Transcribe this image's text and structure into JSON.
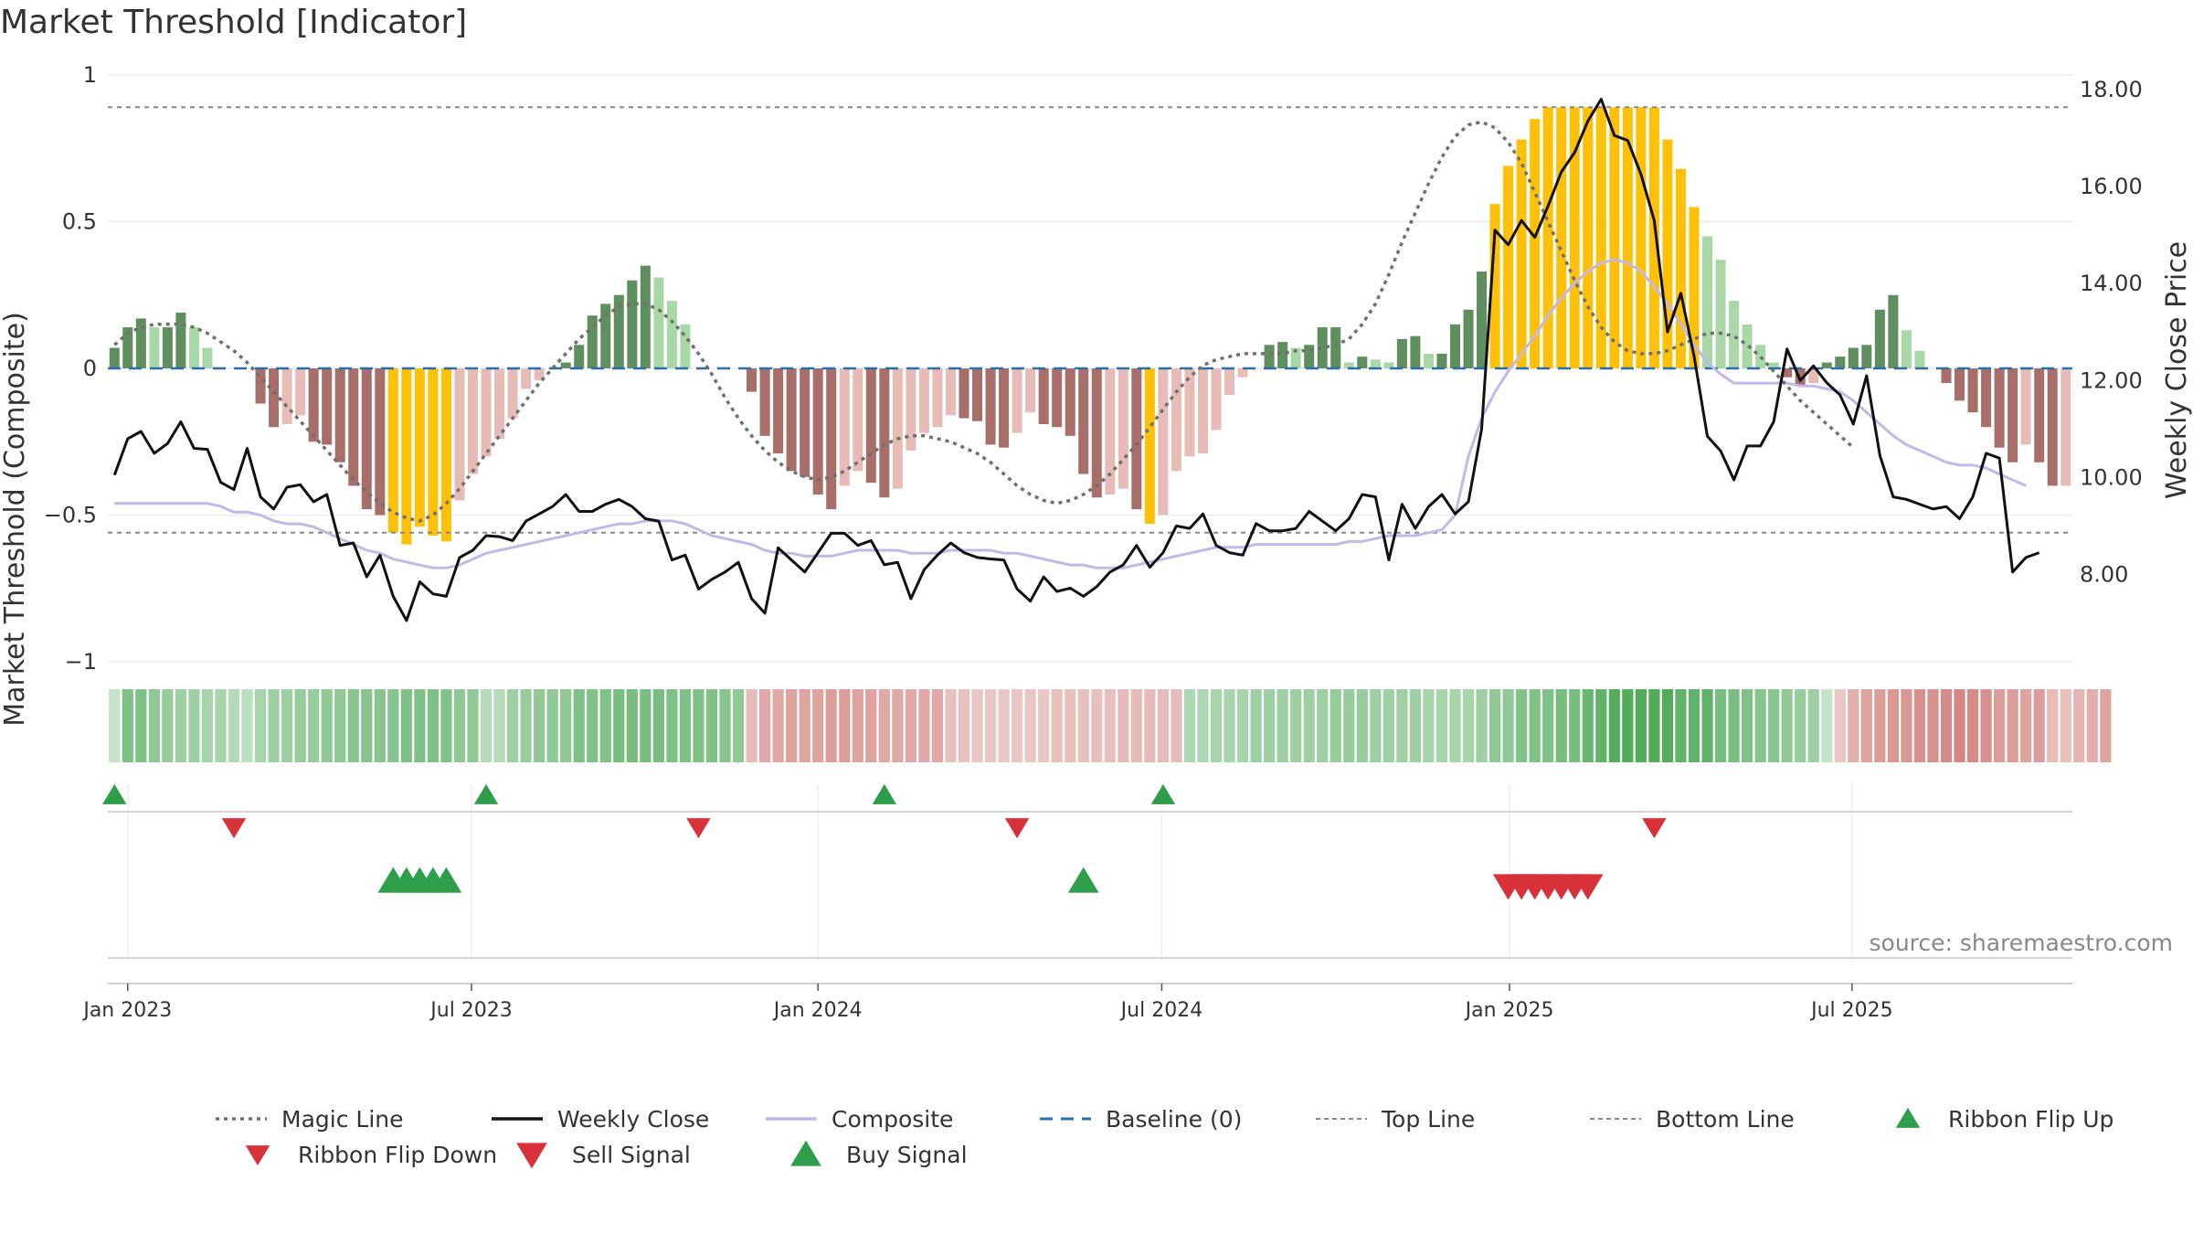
{
  "title": "Market Threshold [Indicator]",
  "source": "source: sharemaestro.com",
  "colors": {
    "dark_green": "#5f8f5e",
    "light_green": "#a9d8a7",
    "dark_red": "#a86e6a",
    "light_red": "#e8bcb6",
    "gold": "#ffc107",
    "close_line": "#111111",
    "composite_line": "#c3b8e8",
    "magic_line": "#707070",
    "baseline": "#2a6fa8",
    "ref_line": "#888888",
    "signal_up": "#2e9e4a",
    "signal_down": "#d9313a"
  },
  "legend": [
    {
      "label": "Magic Line",
      "icon": "dotted-line-icon"
    },
    {
      "label": "Weekly Close",
      "icon": "solid-line-icon"
    },
    {
      "label": "Composite",
      "icon": "lavender-line-icon"
    },
    {
      "label": "Baseline (0)",
      "icon": "dashed-line-icon"
    },
    {
      "label": "Top Line",
      "icon": "dashed-gray-line-icon"
    },
    {
      "label": "Bottom Line",
      "icon": "dashed-gray-line-icon"
    },
    {
      "label": "Ribbon Flip Up",
      "icon": "triangle-up-icon"
    },
    {
      "label": "Ribbon Flip Down",
      "icon": "triangle-down-icon"
    },
    {
      "label": "Sell Signal",
      "icon": "triangle-down-icon"
    },
    {
      "label": "Buy Signal",
      "icon": "triangle-up-icon"
    }
  ],
  "chart_data": {
    "type": "bar",
    "title": "Market Threshold [Indicator]",
    "ylabel": "Market Threshold (Composite)",
    "y2label": "Weekly Close Price",
    "ylim": [
      -1,
      1
    ],
    "y2lim": [
      6.2,
      18.3
    ],
    "yticks": [
      "1",
      "0.5",
      "0",
      "−0.5",
      "−1"
    ],
    "ytick_values": [
      1,
      0.5,
      0,
      -0.5,
      -1
    ],
    "y2ticks": [
      "18.00",
      "16.00",
      "14.00",
      "12.00",
      "10.00",
      "8.00"
    ],
    "y2tick_values": [
      18,
      16,
      14,
      12,
      10,
      8
    ],
    "x_start_date": "2022-12-26",
    "x_ticks": [
      {
        "label": "Jan 2023",
        "week": 1.0
      },
      {
        "label": "Jul 2023",
        "week": 26.9
      },
      {
        "label": "Jan 2024",
        "week": 53.0
      },
      {
        "label": "Jul 2024",
        "week": 78.9
      },
      {
        "label": "Jan 2025",
        "week": 105.1
      },
      {
        "label": "Jul 2025",
        "week": 130.9
      }
    ],
    "top_line": 0.89,
    "bottom_line": -0.56,
    "composite_bars": [
      0.07,
      0.14,
      0.17,
      0.14,
      0.14,
      0.19,
      0.14,
      0.07,
      0,
      0,
      0,
      -0.12,
      -0.2,
      -0.19,
      -0.16,
      -0.25,
      -0.26,
      -0.32,
      -0.4,
      -0.48,
      -0.5,
      -0.56,
      -0.6,
      -0.54,
      -0.57,
      -0.59,
      -0.45,
      -0.36,
      -0.3,
      -0.24,
      -0.17,
      -0.07,
      -0.04,
      0,
      0.02,
      0.08,
      0.18,
      0.22,
      0.25,
      0.3,
      0.35,
      0.31,
      0.23,
      0.15,
      0,
      0,
      0,
      0,
      -0.08,
      -0.23,
      -0.29,
      -0.35,
      -0.37,
      -0.43,
      -0.48,
      -0.4,
      -0.35,
      -0.39,
      -0.44,
      -0.41,
      -0.28,
      -0.22,
      -0.2,
      -0.16,
      -0.17,
      -0.18,
      -0.26,
      -0.27,
      -0.22,
      -0.15,
      -0.19,
      -0.2,
      -0.23,
      -0.36,
      -0.44,
      -0.43,
      -0.41,
      -0.48,
      -0.53,
      -0.5,
      -0.35,
      -0.3,
      -0.29,
      -0.21,
      -0.09,
      -0.03,
      0,
      0.08,
      0.09,
      0.07,
      0.08,
      0.14,
      0.14,
      0.02,
      0.04,
      0.03,
      0.02,
      0.1,
      0.11,
      0.05,
      0.05,
      0.15,
      0.2,
      0.33,
      0.56,
      0.69,
      0.78,
      0.85,
      0.89,
      0.89,
      0.89,
      0.89,
      0.89,
      0.89,
      0.89,
      0.89,
      0.89,
      0.78,
      0.68,
      0.55,
      0.45,
      0.37,
      0.23,
      0.15,
      0.08,
      0.02,
      -0.03,
      -0.06,
      -0.05,
      0.02,
      0.04,
      0.07,
      0.08,
      0.2,
      0.25,
      0.13,
      0.06,
      0,
      -0.05,
      -0.11,
      -0.15,
      -0.2,
      -0.27,
      -0.32,
      -0.26,
      -0.32,
      -0.4,
      -0.4
    ],
    "weekly_close": [
      10.05,
      10.8,
      10.95,
      10.5,
      10.7,
      11.15,
      10.6,
      10.58,
      9.9,
      9.75,
      10.6,
      9.6,
      9.35,
      9.8,
      9.85,
      9.5,
      9.65,
      8.6,
      8.65,
      7.95,
      8.4,
      7.55,
      7.05,
      7.85,
      7.6,
      7.55,
      8.35,
      8.5,
      8.8,
      8.78,
      8.7,
      9.1,
      9.25,
      9.4,
      9.65,
      9.3,
      9.3,
      9.45,
      9.55,
      9.4,
      9.15,
      9.1,
      8.3,
      8.4,
      7.7,
      7.9,
      8.05,
      8.25,
      7.5,
      7.2,
      8.55,
      8.3,
      8.05,
      8.45,
      8.85,
      8.85,
      8.6,
      8.7,
      8.2,
      8.25,
      7.5,
      8.1,
      8.4,
      8.65,
      8.45,
      8.35,
      8.32,
      8.3,
      7.7,
      7.45,
      7.95,
      7.65,
      7.72,
      7.55,
      7.75,
      8.05,
      8.2,
      8.6,
      8.15,
      8.45,
      9.0,
      8.95,
      9.25,
      8.6,
      8.45,
      8.4,
      9.05,
      8.9,
      8.9,
      8.95,
      9.3,
      9.1,
      8.9,
      9.15,
      9.65,
      9.6,
      8.3,
      9.45,
      8.95,
      9.4,
      9.65,
      9.25,
      9.5,
      11.0,
      15.1,
      14.8,
      15.3,
      14.95,
      15.6,
      16.3,
      16.7,
      17.35,
      17.8,
      17.05,
      16.95,
      16.25,
      15.3,
      13.0,
      13.8,
      12.5,
      10.85,
      10.55,
      9.95,
      10.65,
      10.65,
      11.15,
      12.65,
      12.0,
      12.3,
      11.95,
      11.7,
      11.1,
      12.1,
      10.45,
      9.6,
      9.55,
      9.45,
      9.35,
      9.4,
      9.15,
      9.6,
      10.5,
      10.4,
      8.05,
      8.35,
      8.45
    ],
    "composite_line": [
      -0.46,
      -0.46,
      -0.46,
      -0.46,
      -0.46,
      -0.46,
      -0.46,
      -0.46,
      -0.47,
      -0.49,
      -0.49,
      -0.5,
      -0.52,
      -0.53,
      -0.53,
      -0.54,
      -0.56,
      -0.58,
      -0.6,
      -0.62,
      -0.63,
      -0.65,
      -0.66,
      -0.67,
      -0.68,
      -0.68,
      -0.67,
      -0.65,
      -0.63,
      -0.62,
      -0.61,
      -0.6,
      -0.59,
      -0.58,
      -0.57,
      -0.56,
      -0.55,
      -0.54,
      -0.53,
      -0.53,
      -0.52,
      -0.52,
      -0.52,
      -0.53,
      -0.55,
      -0.57,
      -0.58,
      -0.59,
      -0.6,
      -0.62,
      -0.63,
      -0.63,
      -0.64,
      -0.64,
      -0.64,
      -0.63,
      -0.62,
      -0.62,
      -0.62,
      -0.62,
      -0.63,
      -0.63,
      -0.63,
      -0.62,
      -0.62,
      -0.62,
      -0.62,
      -0.63,
      -0.63,
      -0.64,
      -0.65,
      -0.66,
      -0.67,
      -0.67,
      -0.68,
      -0.68,
      -0.68,
      -0.67,
      -0.66,
      -0.65,
      -0.64,
      -0.63,
      -0.62,
      -0.61,
      -0.61,
      -0.61,
      -0.6,
      -0.6,
      -0.6,
      -0.6,
      -0.6,
      -0.6,
      -0.6,
      -0.59,
      -0.59,
      -0.58,
      -0.57,
      -0.57,
      -0.57,
      -0.56,
      -0.55,
      -0.5,
      -0.3,
      -0.17,
      -0.08,
      -0.01,
      0.05,
      0.11,
      0.18,
      0.24,
      0.29,
      0.33,
      0.36,
      0.37,
      0.36,
      0.33,
      0.28,
      0.22,
      0.15,
      0.08,
      0.02,
      -0.02,
      -0.05,
      -0.05,
      -0.05,
      -0.05,
      -0.05,
      -0.06,
      -0.06,
      -0.07,
      -0.08,
      -0.11,
      -0.15,
      -0.19,
      -0.23,
      -0.26,
      -0.28,
      -0.3,
      -0.32,
      -0.33,
      -0.33,
      -0.34,
      -0.36,
      -0.38,
      -0.4
    ],
    "magic_line": [
      0.08,
      0.12,
      0.14,
      0.15,
      0.15,
      0.15,
      0.14,
      0.12,
      0.09,
      0.06,
      0.02,
      -0.03,
      -0.08,
      -0.13,
      -0.18,
      -0.23,
      -0.28,
      -0.33,
      -0.38,
      -0.42,
      -0.46,
      -0.49,
      -0.51,
      -0.52,
      -0.5,
      -0.46,
      -0.41,
      -0.35,
      -0.29,
      -0.23,
      -0.17,
      -0.11,
      -0.05,
      0,
      0.05,
      0.1,
      0.14,
      0.18,
      0.21,
      0.22,
      0.22,
      0.2,
      0.16,
      0.11,
      0.05,
      -0.02,
      -0.1,
      -0.17,
      -0.23,
      -0.28,
      -0.32,
      -0.35,
      -0.37,
      -0.38,
      -0.37,
      -0.35,
      -0.32,
      -0.29,
      -0.26,
      -0.24,
      -0.23,
      -0.23,
      -0.24,
      -0.25,
      -0.27,
      -0.29,
      -0.32,
      -0.36,
      -0.4,
      -0.43,
      -0.45,
      -0.46,
      -0.45,
      -0.43,
      -0.4,
      -0.36,
      -0.31,
      -0.26,
      -0.2,
      -0.14,
      -0.08,
      -0.03,
      0.01,
      0.03,
      0.04,
      0.05,
      0.05,
      0.05,
      0.05,
      0.06,
      0.06,
      0.07,
      0.08,
      0.1,
      0.15,
      0.22,
      0.32,
      0.43,
      0.53,
      0.63,
      0.72,
      0.79,
      0.83,
      0.84,
      0.82,
      0.77,
      0.7,
      0.6,
      0.5,
      0.4,
      0.3,
      0.21,
      0.14,
      0.09,
      0.06,
      0.05,
      0.05,
      0.06,
      0.08,
      0.1,
      0.12,
      0.12,
      0.11,
      0.08,
      0.04,
      -0.01,
      -0.06,
      -0.11,
      -0.15,
      -0.19,
      -0.23,
      -0.27
    ],
    "ribbon_values": [
      0.1,
      0.55,
      0.55,
      0.45,
      0.4,
      0.35,
      0.35,
      0.3,
      0.3,
      0.2,
      0.15,
      0.3,
      0.35,
      0.35,
      0.4,
      0.4,
      0.45,
      0.45,
      0.5,
      0.5,
      0.5,
      0.5,
      0.55,
      0.55,
      0.55,
      0.55,
      0.45,
      0.45,
      0.2,
      0.2,
      0.35,
      0.4,
      0.45,
      0.45,
      0.45,
      0.55,
      0.55,
      0.55,
      0.6,
      0.6,
      0.6,
      0.6,
      0.55,
      0.55,
      0.55,
      0.55,
      0.5,
      0.45,
      -0.3,
      -0.45,
      -0.45,
      -0.5,
      -0.5,
      -0.5,
      -0.55,
      -0.55,
      -0.5,
      -0.5,
      -0.45,
      -0.45,
      -0.45,
      -0.45,
      -0.45,
      -0.25,
      -0.25,
      -0.2,
      -0.2,
      -0.2,
      -0.2,
      -0.2,
      -0.2,
      -0.25,
      -0.25,
      -0.25,
      -0.25,
      -0.25,
      -0.3,
      -0.3,
      -0.3,
      -0.3,
      -0.3,
      0.25,
      0.25,
      0.3,
      0.3,
      0.3,
      0.35,
      0.35,
      0.35,
      0.35,
      0.35,
      0.35,
      0.4,
      0.4,
      0.4,
      0.35,
      0.35,
      0.35,
      0.35,
      0.3,
      0.3,
      0.3,
      0.3,
      0.35,
      0.45,
      0.45,
      0.55,
      0.55,
      0.55,
      0.6,
      0.6,
      0.7,
      0.75,
      0.85,
      0.85,
      0.85,
      0.85,
      0.85,
      0.75,
      0.75,
      0.75,
      0.6,
      0.6,
      0.55,
      0.5,
      0.5,
      0.45,
      0.4,
      0.35,
      0.1,
      -0.2,
      -0.4,
      -0.5,
      -0.55,
      -0.6,
      -0.6,
      -0.65,
      -0.65,
      -0.7,
      -0.75,
      -0.7,
      -0.65,
      -0.55,
      -0.55,
      -0.5,
      -0.55,
      -0.3,
      -0.25,
      -0.35,
      -0.4,
      -0.5
    ],
    "ribbon_flip_up_weeks": [
      0,
      28,
      58,
      79
    ],
    "ribbon_flip_down_weeks": [
      9,
      44,
      68,
      116
    ],
    "buy_signal_weeks": [
      21,
      22,
      23,
      24,
      25,
      73
    ],
    "sell_signal_weeks": [
      105,
      106,
      107,
      108,
      109,
      110,
      111
    ]
  }
}
